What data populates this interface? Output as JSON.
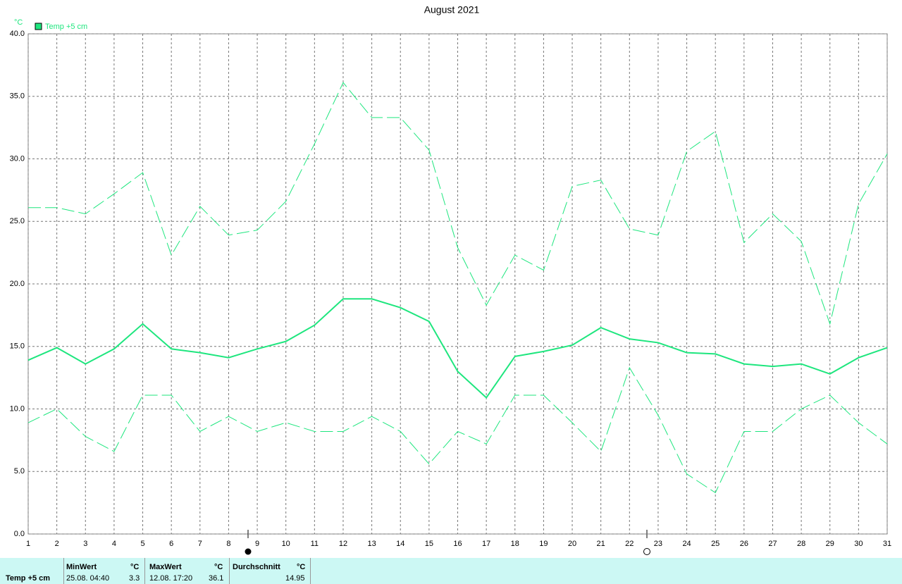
{
  "chart_data": {
    "type": "line",
    "title": "August 2021",
    "y_unit": "°C",
    "categories": [
      1,
      2,
      3,
      4,
      5,
      6,
      7,
      8,
      9,
      10,
      11,
      12,
      13,
      14,
      15,
      16,
      17,
      18,
      19,
      20,
      21,
      22,
      23,
      24,
      25,
      26,
      27,
      28,
      29,
      30,
      31
    ],
    "series": [
      {
        "name": "Temp +5 cm",
        "color": "#1ee67e",
        "values": [
          13.9,
          14.9,
          13.6,
          14.8,
          16.8,
          14.8,
          14.5,
          14.1,
          14.8,
          15.4,
          16.7,
          18.8,
          18.8,
          18.1,
          17.0,
          13.0,
          10.9,
          14.2,
          14.6,
          15.1,
          16.5,
          15.6,
          15.3,
          14.5,
          14.4,
          13.6,
          13.4,
          13.6,
          12.8,
          14.1,
          14.9
        ]
      },
      {
        "color": "#1ee67e",
        "dashed": true,
        "values": [
          26.1,
          26.1,
          25.6,
          27.2,
          28.9,
          22.3,
          26.2,
          23.9,
          24.3,
          26.6,
          31.2,
          36.1,
          33.3,
          33.3,
          30.7,
          22.9,
          18.3,
          22.3,
          21.1,
          27.8,
          28.3,
          24.4,
          23.9,
          30.6,
          32.2,
          23.3,
          25.6,
          23.4,
          16.8,
          26.4,
          30.4
        ]
      },
      {
        "color": "#1ee67e",
        "dashed": true,
        "values": [
          8.9,
          10.0,
          7.8,
          6.6,
          11.1,
          11.1,
          8.2,
          9.4,
          8.2,
          8.9,
          8.2,
          8.2,
          9.4,
          8.2,
          5.6,
          8.2,
          7.2,
          11.1,
          11.1,
          8.9,
          6.6,
          13.3,
          9.5,
          4.8,
          3.3,
          8.2,
          8.2,
          10.0,
          11.1,
          8.9,
          7.2
        ]
      }
    ],
    "ylim": [
      0,
      40
    ],
    "yticks": [
      {
        "value": 0,
        "label": "0.0"
      },
      {
        "value": 5,
        "label": "5.0"
      },
      {
        "value": 10,
        "label": "10.0"
      },
      {
        "value": 15,
        "label": "15.0"
      },
      {
        "value": 20,
        "label": "20.0"
      },
      {
        "value": 25,
        "label": "25.0"
      },
      {
        "value": 30,
        "label": "30.0"
      },
      {
        "value": 35,
        "label": "35.0"
      },
      {
        "value": 40,
        "label": "40.0"
      }
    ],
    "grid": true
  },
  "footer": {
    "sensor": "Temp +5 cm",
    "min": {
      "label": "MinWert",
      "unit": "°C",
      "time": "25.08.  04:40",
      "value": "3.3"
    },
    "max": {
      "label": "MaxWert",
      "unit": "°C",
      "time": "12.08.  17:20",
      "value": "36.1"
    },
    "avg": {
      "label": "Durchschnitt",
      "unit": "°C",
      "value": "14.95"
    }
  }
}
